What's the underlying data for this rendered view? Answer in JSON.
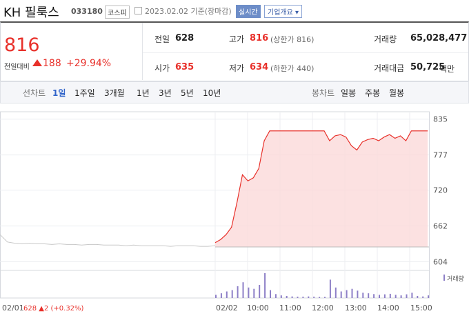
{
  "header": {
    "name": "KH 필룩스",
    "code": "033180",
    "market": "코스피",
    "date": "2023.02.02 기준(장마감)",
    "realtime": "실시간",
    "overview": "기업개요"
  },
  "price": {
    "current": 816,
    "change_label": "전일대비",
    "change": 188,
    "rate": "+29.94%"
  },
  "stats": {
    "prev": {
      "label": "전일",
      "value": 628
    },
    "high": {
      "label": "고가",
      "value": 816,
      "note": "(상한가 816)"
    },
    "volume": {
      "label": "거래량",
      "value": "65,028,477"
    },
    "open": {
      "label": "시가",
      "value": 635
    },
    "low": {
      "label": "저가",
      "value": 634,
      "note": "(하한가 440)"
    },
    "amount": {
      "label": "거래대금",
      "value": "50,725",
      "unit": "백만"
    }
  },
  "tabs": {
    "line_label": "선차트",
    "line": [
      "1일",
      "1주일",
      "3개월",
      "1년",
      "3년",
      "5년",
      "10년"
    ],
    "candle_label": "봉차트",
    "candle": [
      "일봉",
      "주봉",
      "월봉"
    ]
  },
  "chart": {
    "type": "line",
    "ylim": [
      590,
      847
    ],
    "yticks": [
      835,
      777,
      720,
      662,
      604
    ],
    "prev_day": [
      648,
      636,
      634,
      633,
      634,
      633,
      633,
      632,
      633,
      632,
      632,
      631,
      632,
      632,
      631,
      631,
      631,
      630,
      631,
      630,
      630,
      630,
      630,
      629,
      630,
      630,
      630,
      629,
      629,
      630
    ],
    "today": [
      635,
      640,
      648,
      660,
      700,
      745,
      735,
      740,
      755,
      800,
      816,
      816,
      816,
      816,
      816,
      816,
      816,
      816,
      816,
      816,
      816,
      800,
      808,
      810,
      806,
      792,
      785,
      798,
      802,
      804,
      800,
      806,
      810,
      804,
      808,
      800,
      816,
      816,
      816,
      816
    ],
    "volume": [
      12,
      18,
      25,
      30,
      45,
      60,
      40,
      35,
      50,
      95,
      30,
      15,
      10,
      8,
      6,
      5,
      5,
      6,
      5,
      4,
      4,
      70,
      40,
      25,
      30,
      35,
      28,
      20,
      18,
      15,
      12,
      14,
      16,
      12,
      10,
      14,
      20,
      8,
      6,
      10
    ],
    "volume_label": "거래량",
    "xlabels": [
      "02/02",
      "10:00",
      "11:00",
      "12:00",
      "13:00",
      "14:00",
      "15:00"
    ],
    "footer_date": "02/01",
    "footer_info": "628 ▲2 (+0.32%)",
    "line_color": "#e8302a",
    "fill_color": "#fbd9d9",
    "prev_color": "#c8c8c8",
    "volume_color": "#8d7fc7"
  }
}
